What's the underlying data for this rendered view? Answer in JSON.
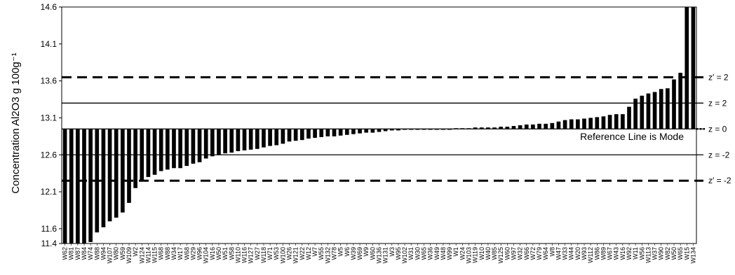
{
  "chart_data": {
    "type": "bar",
    "title": "",
    "ylabel": "Concentration Al2O3 g 100g⁻¹",
    "xlabel": "",
    "ylim": [
      11.4,
      14.6
    ],
    "yticks": [
      "11.4",
      "11.6",
      "12.1",
      "12.6",
      "13.1",
      "13.6",
      "14.1",
      "14.6"
    ],
    "baseline": 12.95,
    "bar_color": "#000000",
    "annotation": "Reference Line is Mode",
    "reference_lines": [
      {
        "value": 13.65,
        "label": "z′ = 2",
        "style": "dashed"
      },
      {
        "value": 13.3,
        "label": "z = 2",
        "style": "solid"
      },
      {
        "value": 12.95,
        "label": "z = 0",
        "style": "solid"
      },
      {
        "value": 12.6,
        "label": "z = -2",
        "style": "solid"
      },
      {
        "value": 12.25,
        "label": "z′ = -2",
        "style": "dashed"
      }
    ],
    "categories": [
      "W62",
      "W81",
      "W87",
      "W84",
      "W74",
      "W88",
      "W94",
      "W107",
      "W80",
      "W59",
      "W109",
      "W2",
      "W124",
      "W114",
      "W115",
      "W68",
      "W88",
      "W34",
      "W17",
      "W68",
      "W29",
      "W96",
      "W104",
      "W16",
      "W50",
      "W51",
      "W58",
      "W110",
      "W116",
      "W127",
      "W27",
      "W118",
      "W71",
      "W53",
      "W100",
      "W26",
      "W121",
      "W22",
      "W12",
      "W7",
      "W55",
      "W132",
      "W78",
      "W5",
      "W6",
      "W39",
      "W69",
      "W9",
      "W60",
      "W136",
      "W131",
      "W3",
      "W95",
      "W102",
      "W31",
      "W30",
      "W65",
      "W36",
      "W49",
      "W48",
      "W99",
      "W1",
      "W24",
      "W103",
      "W119",
      "W10",
      "W40",
      "W85",
      "W125",
      "W60",
      "W97",
      "W32",
      "W66",
      "W72",
      "W79",
      "W64",
      "W8",
      "W47",
      "W33",
      "W44",
      "W20",
      "W93",
      "W112",
      "W86",
      "W89",
      "W67",
      "W43",
      "W16",
      "W92",
      "W11",
      "W56",
      "W113",
      "W37",
      "W90",
      "W82",
      "W50",
      "W65",
      "W15",
      "W134"
    ],
    "values": [
      11.4,
      11.4,
      11.4,
      11.4,
      11.42,
      11.55,
      11.62,
      11.7,
      11.75,
      11.82,
      11.95,
      12.15,
      12.25,
      12.3,
      12.33,
      12.38,
      12.4,
      12.42,
      12.42,
      12.45,
      12.48,
      12.5,
      12.55,
      12.58,
      12.6,
      12.62,
      12.63,
      12.65,
      12.66,
      12.67,
      12.68,
      12.7,
      12.72,
      12.73,
      12.75,
      12.78,
      12.79,
      12.8,
      12.82,
      12.83,
      12.84,
      12.85,
      12.85,
      12.86,
      12.87,
      12.88,
      12.89,
      12.9,
      12.9,
      12.91,
      12.92,
      12.93,
      12.93,
      12.94,
      12.95,
      12.95,
      12.95,
      12.95,
      12.95,
      12.95,
      12.95,
      12.96,
      12.96,
      12.96,
      12.97,
      12.97,
      12.97,
      12.97,
      12.98,
      12.98,
      12.99,
      13.0,
      13.01,
      13.01,
      13.02,
      13.02,
      13.03,
      13.05,
      13.07,
      13.08,
      13.08,
      13.09,
      13.1,
      13.11,
      13.12,
      13.14,
      13.15,
      13.15,
      13.25,
      13.36,
      13.4,
      13.43,
      13.45,
      13.49,
      13.5,
      13.62,
      13.71,
      14.6,
      14.6
    ]
  }
}
